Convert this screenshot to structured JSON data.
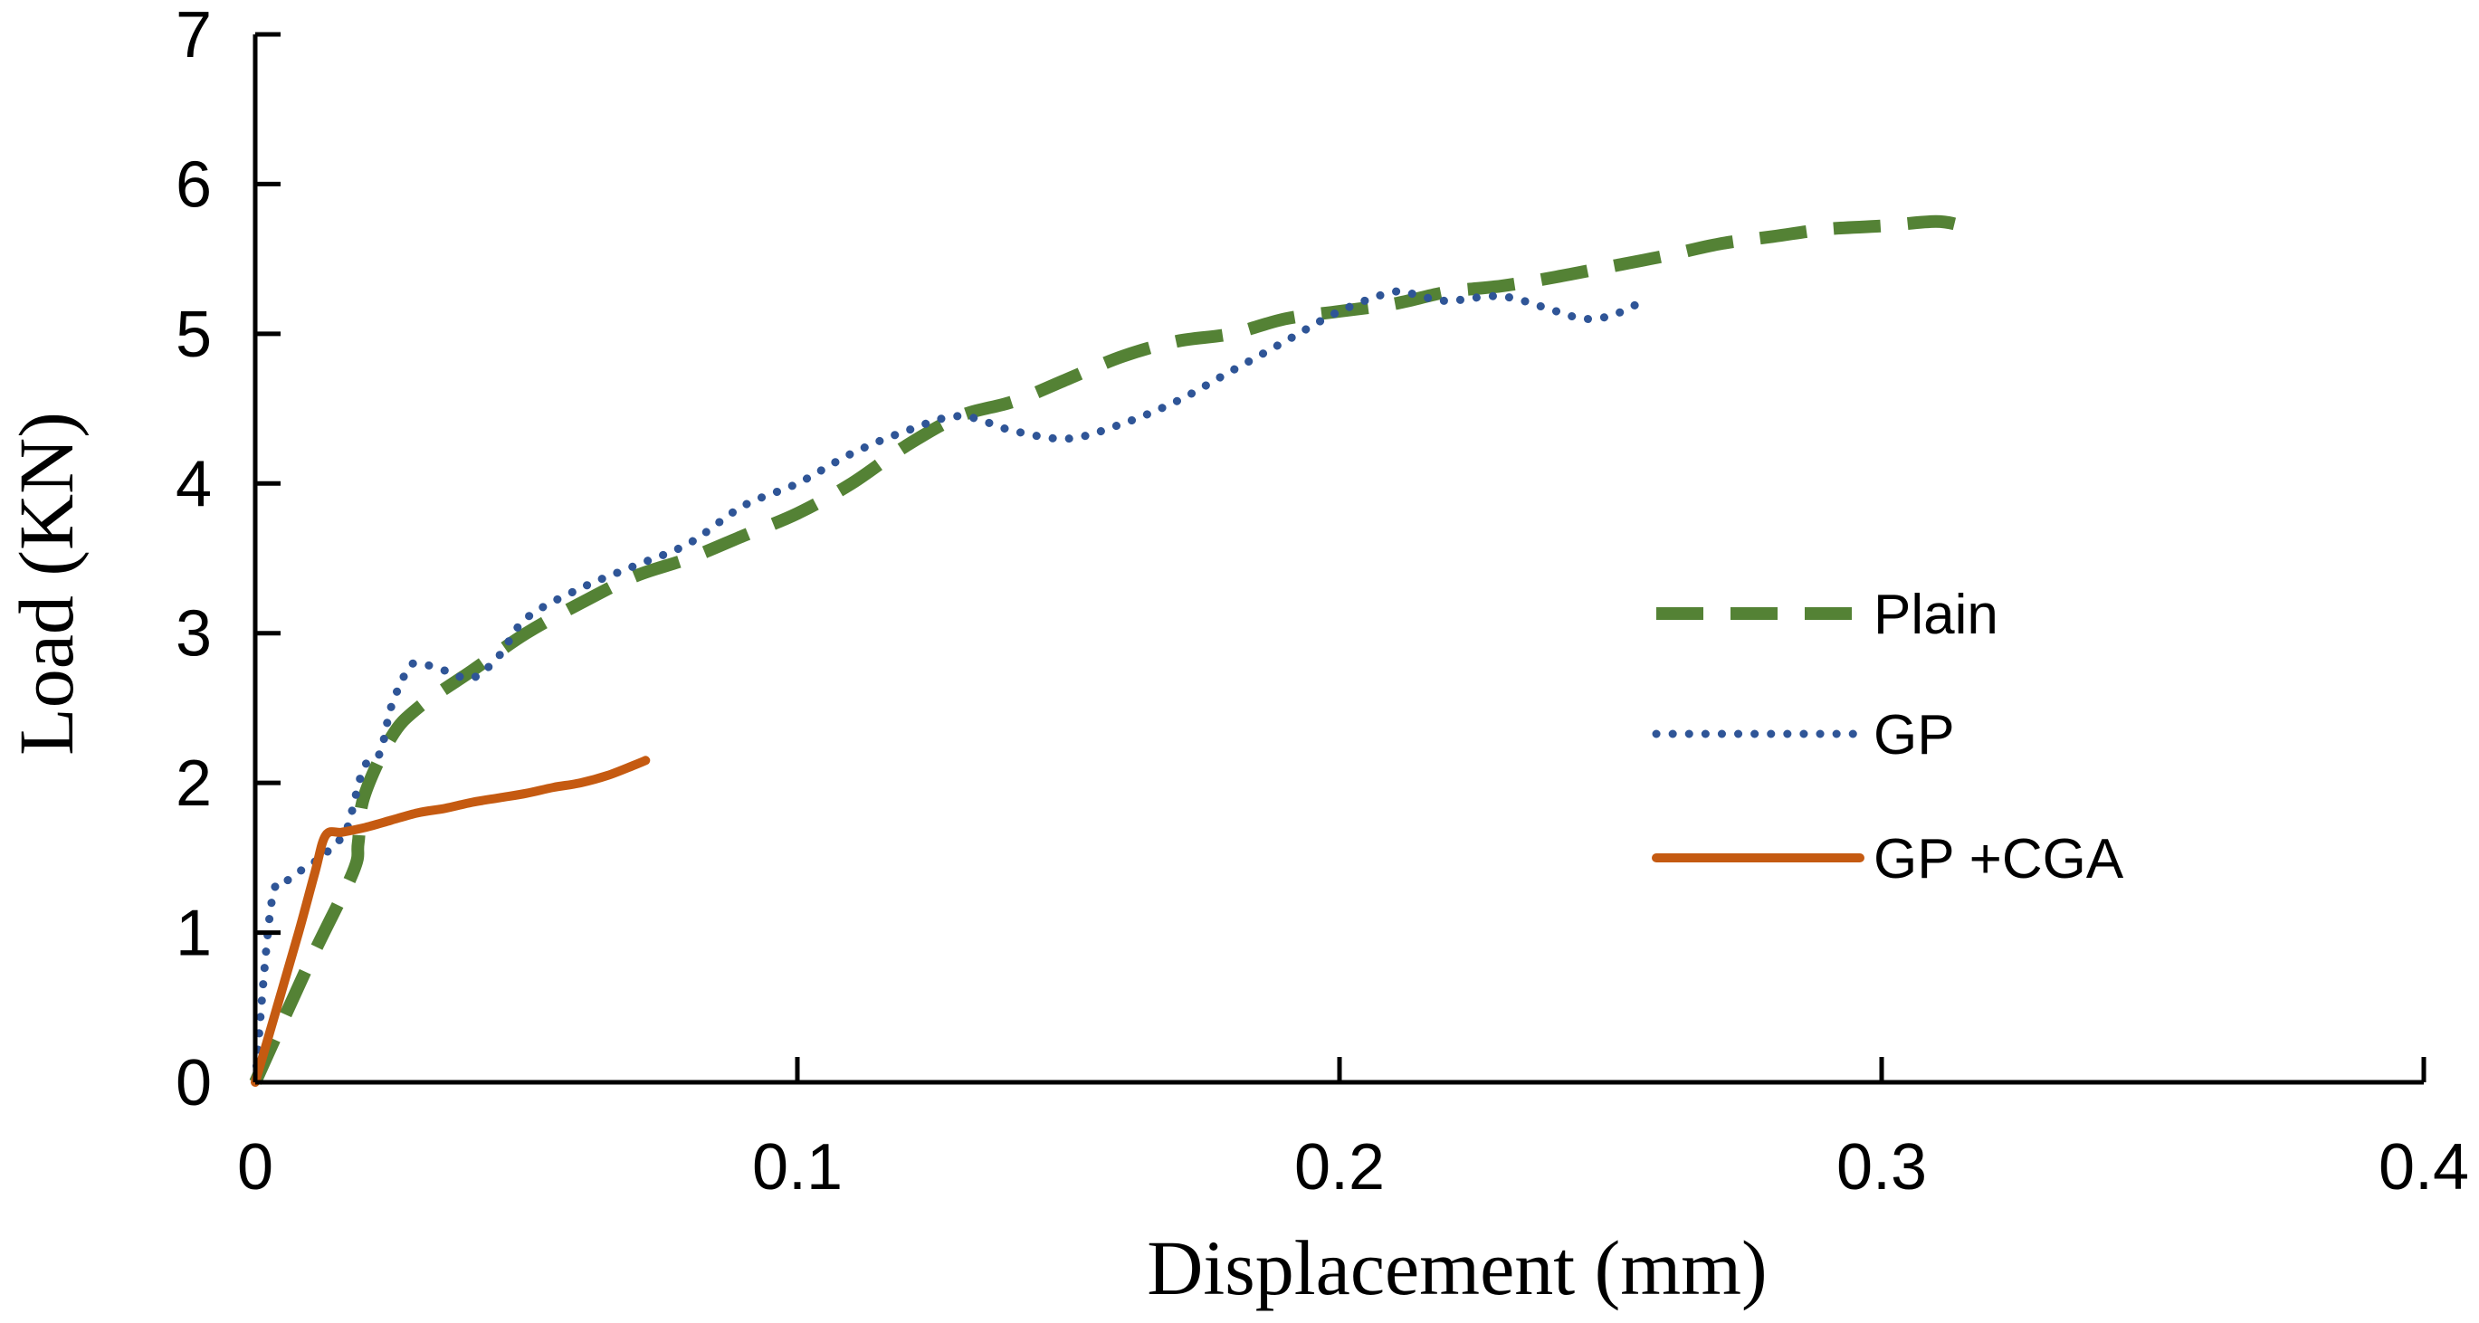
{
  "chart_data": {
    "type": "line",
    "title": "",
    "xlabel": "Displacement (mm)",
    "ylabel": "Load (KN)",
    "xlim": [
      0,
      0.4
    ],
    "ylim": [
      0,
      7
    ],
    "xticks": [
      0,
      0.1,
      0.2,
      0.3,
      0.4
    ],
    "xtick_labels": [
      "0",
      "0.1",
      "0.2",
      "0.3",
      "0.4"
    ],
    "yticks": [
      0,
      1,
      2,
      3,
      4,
      5,
      6,
      7
    ],
    "ytick_labels": [
      "0",
      "1",
      "2",
      "3",
      "4",
      "5",
      "6",
      "7"
    ],
    "grid": false,
    "legend_position": "right",
    "series": [
      {
        "name": "Plain",
        "color": "#548235",
        "style": "dashed",
        "x": [
          0,
          0.01,
          0.018,
          0.019,
          0.02,
          0.025,
          0.03,
          0.04,
          0.05,
          0.06,
          0.07,
          0.08,
          0.09,
          0.1,
          0.11,
          0.12,
          0.13,
          0.14,
          0.15,
          0.16,
          0.17,
          0.18,
          0.19,
          0.2,
          0.21,
          0.22,
          0.23,
          0.24,
          0.25,
          0.26,
          0.27,
          0.28,
          0.29,
          0.3,
          0.31,
          0.315
        ],
        "y": [
          0,
          0.8,
          1.4,
          1.6,
          1.9,
          2.3,
          2.5,
          2.75,
          3.0,
          3.2,
          3.38,
          3.5,
          3.65,
          3.8,
          4.0,
          4.25,
          4.45,
          4.55,
          4.7,
          4.85,
          4.95,
          5.0,
          5.1,
          5.15,
          5.2,
          5.28,
          5.32,
          5.38,
          5.45,
          5.52,
          5.6,
          5.65,
          5.7,
          5.72,
          5.75,
          5.72
        ]
      },
      {
        "name": "GP",
        "color": "#2F5597",
        "style": "dotted",
        "x": [
          0,
          0.003,
          0.006,
          0.01,
          0.012,
          0.015,
          0.017,
          0.02,
          0.023,
          0.025,
          0.028,
          0.03,
          0.035,
          0.04,
          0.045,
          0.05,
          0.06,
          0.07,
          0.08,
          0.09,
          0.1,
          0.11,
          0.12,
          0.13,
          0.14,
          0.15,
          0.16,
          0.17,
          0.18,
          0.19,
          0.2,
          0.21,
          0.215,
          0.22,
          0.23,
          0.24,
          0.245,
          0.25,
          0.255
        ],
        "y": [
          0,
          1.2,
          1.35,
          1.45,
          1.5,
          1.6,
          1.7,
          2.1,
          2.2,
          2.5,
          2.75,
          2.8,
          2.75,
          2.7,
          2.85,
          3.1,
          3.3,
          3.45,
          3.6,
          3.85,
          4.0,
          4.2,
          4.35,
          4.45,
          4.35,
          4.3,
          4.4,
          4.55,
          4.75,
          4.95,
          5.15,
          5.28,
          5.25,
          5.22,
          5.25,
          5.15,
          5.1,
          5.12,
          5.2
        ]
      },
      {
        "name": "GP +CGA",
        "color": "#C55A11",
        "style": "solid",
        "x": [
          0,
          0.004,
          0.008,
          0.011,
          0.013,
          0.016,
          0.02,
          0.025,
          0.03,
          0.035,
          0.04,
          0.045,
          0.05,
          0.055,
          0.06,
          0.065,
          0.07,
          0.072
        ],
        "y": [
          0,
          0.5,
          1.0,
          1.4,
          1.65,
          1.67,
          1.7,
          1.75,
          1.8,
          1.83,
          1.87,
          1.9,
          1.93,
          1.97,
          2.0,
          2.05,
          2.12,
          2.15
        ]
      }
    ]
  }
}
